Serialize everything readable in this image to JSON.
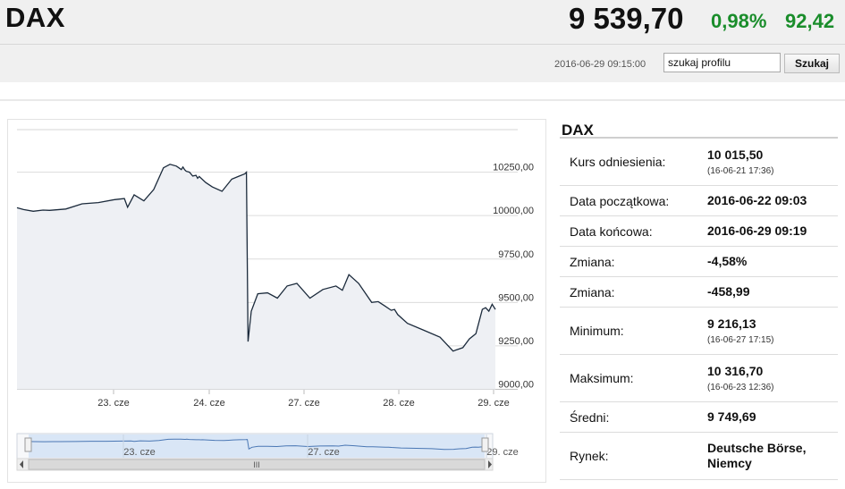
{
  "header": {
    "title": "DAX",
    "price": "9 539,70",
    "change_pct": "0,98%",
    "change_abs": "92,42",
    "timestamp": "2016-06-29 09:15:00",
    "search_value": "szukaj profilu",
    "search_button": "Szukaj",
    "up_color": "#1a8d2b"
  },
  "chart_data": {
    "type": "line",
    "x_ticks": [
      "23. cze",
      "24. cze",
      "27. cze",
      "28. cze",
      "29. cze"
    ],
    "y_ticks": [
      "10250,00",
      "10000,00",
      "9750,00",
      "9500,00",
      "9250,00",
      "9000,00"
    ],
    "ylim": [
      9000,
      10500
    ],
    "grid": true,
    "series": [
      {
        "x": [
          0,
          0.2,
          0.5,
          0.8,
          1.0,
          1.5,
          2.0,
          2.5,
          3.0,
          3.3,
          3.4,
          3.6,
          3.9,
          4.2,
          4.5,
          4.7,
          4.9,
          5.05,
          5.1,
          5.15,
          5.2,
          5.3,
          5.4,
          5.5,
          5.55,
          5.6,
          5.8,
          6.0,
          6.3,
          6.6,
          6.8,
          7.0,
          7.05,
          7.1,
          7.2,
          7.4,
          7.7,
          8.0,
          8.3,
          8.6,
          9.0,
          9.4,
          9.8,
          10.0,
          10.2,
          10.5,
          10.9,
          11.1,
          11.3,
          11.5,
          11.6,
          11.7,
          12.0,
          12.5,
          13.0,
          13.4,
          13.7,
          13.9,
          14.1,
          14.3,
          14.4,
          14.5,
          14.6,
          14.7
        ],
        "values": [
          10045,
          10035,
          10025,
          10032,
          10030,
          10038,
          10068,
          10075,
          10092,
          10098,
          10048,
          10120,
          10085,
          10150,
          10275,
          10295,
          10285,
          10265,
          10280,
          10265,
          10255,
          10250,
          10228,
          10232,
          10215,
          10225,
          10190,
          10165,
          10140,
          10210,
          10225,
          10240,
          10250,
          9275,
          9450,
          9550,
          9555,
          9525,
          9595,
          9610,
          9525,
          9575,
          9595,
          9570,
          9660,
          9610,
          9500,
          9505,
          9480,
          9455,
          9460,
          9430,
          9380,
          9340,
          9300,
          9220,
          9240,
          9290,
          9320,
          9460,
          9470,
          9450,
          9490,
          9460
        ]
      }
    ]
  },
  "navigator": {
    "labels": [
      "23. cze",
      "27. cze",
      "29. cze"
    ],
    "scroll_grip": "III"
  },
  "info": {
    "title": "DAX",
    "rows": [
      {
        "label": "Kurs odniesienia:",
        "value": "10 015,50",
        "sub": "(16-06-21 17:36)"
      },
      {
        "label": "Data początkowa:",
        "value": "2016-06-22 09:03"
      },
      {
        "label": "Data końcowa:",
        "value": "2016-06-29 09:19"
      },
      {
        "label": "Zmiana:",
        "value": "-4,58%"
      },
      {
        "label": "Zmiana:",
        "value": "-458,99"
      },
      {
        "label": "Minimum:",
        "value": "9 216,13",
        "sub": "(16-06-27 17:15)"
      },
      {
        "label": "Maksimum:",
        "value": "10 316,70",
        "sub": "(16-06-23 12:36)"
      },
      {
        "label": "Średni:",
        "value": "9 749,69"
      },
      {
        "label": "Rynek:",
        "value": "Deutsche Börse, Niemcy"
      }
    ]
  }
}
